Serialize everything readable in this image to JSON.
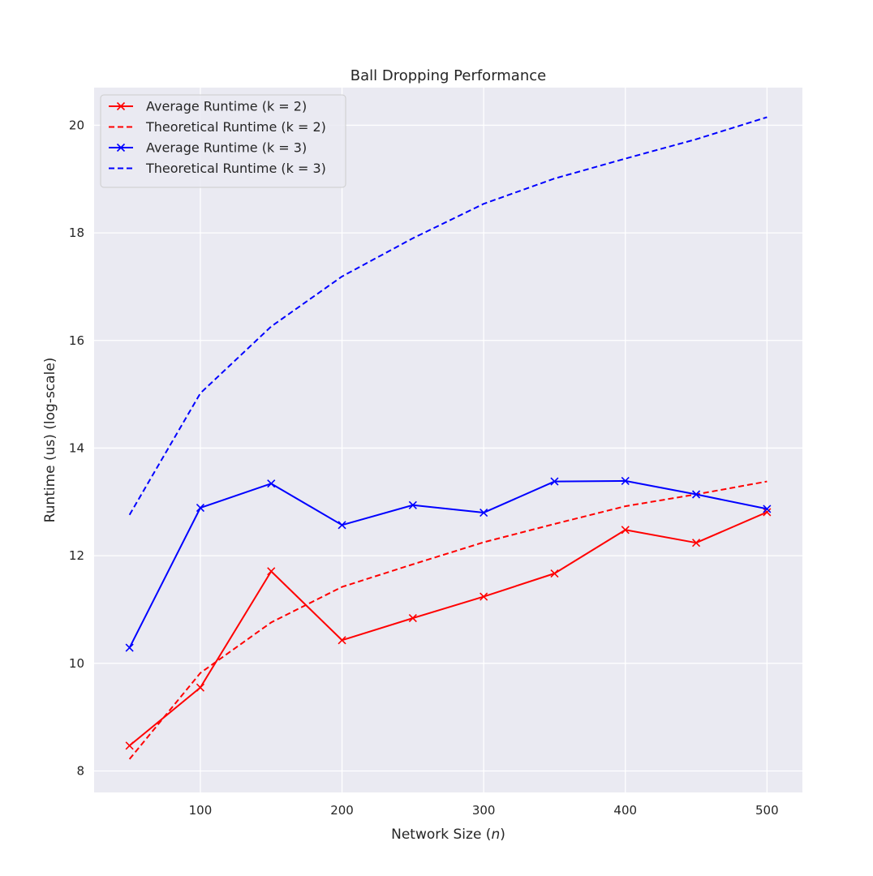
{
  "chart_data": {
    "type": "line",
    "title": "Ball Dropping Performance",
    "xlabel": "Network Size (n)",
    "ylabel": "Runtime (us) (log-scale)",
    "xlim": [
      25,
      525
    ],
    "ylim": [
      7.6,
      20.7
    ],
    "xticks": [
      100,
      200,
      300,
      400,
      500
    ],
    "yticks": [
      8,
      10,
      12,
      14,
      16,
      18,
      20
    ],
    "grid": true,
    "legend_position": "top-left",
    "x": [
      50,
      100,
      150,
      200,
      250,
      300,
      350,
      400,
      450,
      500
    ],
    "series": [
      {
        "name": "Average Runtime (k = 2)",
        "color": "#ff0000",
        "style": "solid",
        "marker": "x",
        "values": [
          8.47,
          9.55,
          11.71,
          10.43,
          10.84,
          11.24,
          11.67,
          12.48,
          12.24,
          12.81
        ]
      },
      {
        "name": "Theoretical Runtime (k = 2)",
        "color": "#ff0000",
        "style": "dashed",
        "marker": "none",
        "values": [
          8.22,
          9.82,
          10.76,
          11.42,
          11.84,
          12.25,
          12.59,
          12.92,
          13.14,
          13.38
        ]
      },
      {
        "name": "Average Runtime (k = 3)",
        "color": "#0000ff",
        "style": "solid",
        "marker": "x",
        "values": [
          10.29,
          12.89,
          13.34,
          12.57,
          12.94,
          12.8,
          13.38,
          13.39,
          13.14,
          12.87
        ]
      },
      {
        "name": "Theoretical Runtime (k = 3)",
        "color": "#0000ff",
        "style": "dashed",
        "marker": "none",
        "values": [
          12.76,
          15.02,
          16.26,
          17.19,
          17.9,
          18.54,
          19.01,
          19.38,
          19.74,
          20.15
        ]
      }
    ]
  }
}
